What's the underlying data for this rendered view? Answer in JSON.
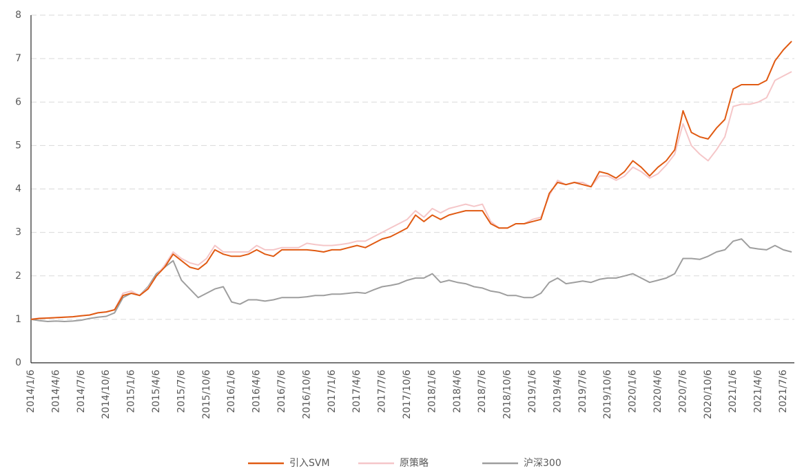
{
  "chart_data": {
    "type": "line",
    "categories": [
      "2014/1/6",
      null,
      null,
      "2014/4/6",
      null,
      null,
      "2014/7/6",
      null,
      null,
      "2014/10/6",
      null,
      null,
      "2015/1/6",
      null,
      null,
      "2015/4/6",
      null,
      null,
      "2015/7/6",
      null,
      null,
      "2015/10/6",
      null,
      null,
      "2016/1/6",
      null,
      null,
      "2016/4/6",
      null,
      null,
      "2016/7/6",
      null,
      null,
      "2016/10/6",
      null,
      null,
      "2017/1/6",
      null,
      null,
      "2017/4/6",
      null,
      null,
      "2017/7/6",
      null,
      null,
      "2017/10/6",
      null,
      null,
      "2018/1/6",
      null,
      null,
      "2018/4/6",
      null,
      null,
      "2018/7/6",
      null,
      null,
      "2018/10/6",
      null,
      null,
      "2019/1/6",
      null,
      null,
      "2019/4/6",
      null,
      null,
      "2019/7/6",
      null,
      null,
      "2019/10/6",
      null,
      null,
      "2020/1/6",
      null,
      null,
      "2020/4/6",
      null,
      null,
      "2020/7/6",
      null,
      null,
      "2020/10/6",
      null,
      null,
      "2021/1/6",
      null,
      null,
      "2021/4/6",
      null,
      null,
      "2021/7/6",
      null
    ],
    "series": [
      {
        "name": "引入SVM",
        "color": "#e05a12",
        "values": [
          1.0,
          1.02,
          1.03,
          1.04,
          1.05,
          1.06,
          1.08,
          1.1,
          1.15,
          1.17,
          1.22,
          1.55,
          1.6,
          1.55,
          1.7,
          2.0,
          2.2,
          2.5,
          2.35,
          2.2,
          2.15,
          2.3,
          2.6,
          2.5,
          2.45,
          2.45,
          2.5,
          2.6,
          2.5,
          2.45,
          2.6,
          2.6,
          2.6,
          2.6,
          2.58,
          2.55,
          2.6,
          2.6,
          2.65,
          2.7,
          2.65,
          2.75,
          2.85,
          2.9,
          3.0,
          3.1,
          3.4,
          3.25,
          3.4,
          3.3,
          3.4,
          3.45,
          3.5,
          3.5,
          3.5,
          3.2,
          3.1,
          3.1,
          3.2,
          3.2,
          3.25,
          3.3,
          3.9,
          4.15,
          4.1,
          4.15,
          4.1,
          4.05,
          4.4,
          4.35,
          4.25,
          4.4,
          4.65,
          4.5,
          4.3,
          4.5,
          4.65,
          4.9,
          5.8,
          5.3,
          5.2,
          5.15,
          5.4,
          5.6,
          6.3,
          6.4,
          6.4,
          6.4,
          6.5,
          6.95,
          7.2,
          7.4
        ]
      },
      {
        "name": "原策略",
        "color": "#f5c6c8",
        "values": [
          1.0,
          1.03,
          1.03,
          1.04,
          1.05,
          1.06,
          1.08,
          1.1,
          1.15,
          1.17,
          1.22,
          1.6,
          1.65,
          1.55,
          1.72,
          2.0,
          2.25,
          2.55,
          2.4,
          2.3,
          2.25,
          2.4,
          2.7,
          2.55,
          2.55,
          2.55,
          2.55,
          2.7,
          2.6,
          2.6,
          2.65,
          2.65,
          2.65,
          2.75,
          2.72,
          2.7,
          2.7,
          2.72,
          2.75,
          2.8,
          2.8,
          2.9,
          3.0,
          3.1,
          3.2,
          3.3,
          3.5,
          3.35,
          3.55,
          3.45,
          3.55,
          3.6,
          3.65,
          3.6,
          3.65,
          3.25,
          3.1,
          3.1,
          3.2,
          3.2,
          3.3,
          3.35,
          3.85,
          4.2,
          4.1,
          4.15,
          4.15,
          4.05,
          4.3,
          4.3,
          4.2,
          4.3,
          4.5,
          4.4,
          4.25,
          4.35,
          4.55,
          4.8,
          5.5,
          5.0,
          4.8,
          4.65,
          4.9,
          5.2,
          5.9,
          5.95,
          5.95,
          6.0,
          6.1,
          6.5,
          6.6,
          6.7
        ]
      },
      {
        "name": "沪深300",
        "color": "#9e9e9e",
        "values": [
          1.0,
          0.97,
          0.95,
          0.96,
          0.95,
          0.96,
          0.98,
          1.02,
          1.05,
          1.07,
          1.15,
          1.5,
          1.6,
          1.55,
          1.75,
          2.05,
          2.2,
          2.35,
          1.9,
          1.7,
          1.5,
          1.6,
          1.7,
          1.75,
          1.4,
          1.35,
          1.45,
          1.45,
          1.42,
          1.45,
          1.5,
          1.5,
          1.5,
          1.52,
          1.55,
          1.55,
          1.58,
          1.58,
          1.6,
          1.62,
          1.6,
          1.68,
          1.75,
          1.78,
          1.82,
          1.9,
          1.95,
          1.95,
          2.05,
          1.85,
          1.9,
          1.85,
          1.82,
          1.75,
          1.72,
          1.65,
          1.62,
          1.55,
          1.55,
          1.5,
          1.5,
          1.6,
          1.85,
          1.95,
          1.82,
          1.85,
          1.88,
          1.85,
          1.92,
          1.95,
          1.95,
          2.0,
          2.05,
          1.95,
          1.85,
          1.9,
          1.95,
          2.05,
          2.4,
          2.4,
          2.38,
          2.45,
          2.55,
          2.6,
          2.8,
          2.85,
          2.65,
          2.62,
          2.6,
          2.7,
          2.6,
          2.55
        ]
      }
    ],
    "ylim": [
      0,
      8
    ],
    "yticks": [
      0,
      1,
      2,
      3,
      4,
      5,
      6,
      7,
      8
    ],
    "grid": true,
    "legend": "bottom"
  }
}
